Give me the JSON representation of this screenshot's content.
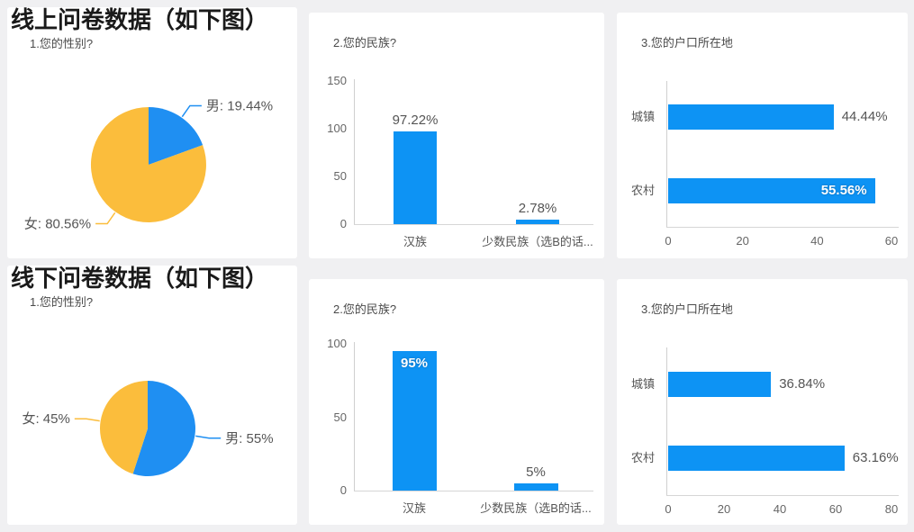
{
  "page": {
    "background": "#f0f0f2",
    "card_background": "#ffffff"
  },
  "colors": {
    "bar_blue": "#0d93f4",
    "pie_blue": "#1f8ff2",
    "pie_yellow": "#fbbd3c",
    "axis_line": "#cfcfcf",
    "tick_text": "#666666",
    "data_label_text": "#555555",
    "inside_label_text": "#ffffff",
    "chart_title_text": "#4a4a4a",
    "heading_text": "#1a1a1a"
  },
  "sections": [
    {
      "id": "online",
      "heading": "线上问卷数据（如下图）"
    },
    {
      "id": "offline",
      "heading": "线下问卷数据（如下图）"
    }
  ],
  "chart_data": [
    {
      "type": "pie",
      "section": "线上问卷数据",
      "title": "1.您的性别?",
      "slices": [
        {
          "label": "男",
          "value": 19.44,
          "display": "男: 19.44%",
          "color": "#1f8ff2"
        },
        {
          "label": "女",
          "value": 80.56,
          "display": "女: 80.56%",
          "color": "#fbbd3c"
        }
      ],
      "legend": false
    },
    {
      "type": "bar",
      "section": "线上问卷数据",
      "title": "2.您的民族?",
      "categories": [
        "汉族",
        "少数民族（选B的话..."
      ],
      "values": [
        97.22,
        2.78
      ],
      "labels": [
        "97.22%",
        "2.78%"
      ],
      "label_positions": [
        "outside",
        "outside"
      ],
      "ylim": [
        0,
        150
      ],
      "yticks": [
        0,
        50,
        100,
        150
      ],
      "xlabel": "",
      "ylabel": "",
      "grid": false,
      "legend": false
    },
    {
      "type": "hbar",
      "section": "线上问卷数据",
      "title": "3.您的户口所在地",
      "categories": [
        "城镇",
        "农村"
      ],
      "values": [
        44.44,
        55.56
      ],
      "labels": [
        "44.44%",
        "55.56%"
      ],
      "label_positions": [
        "outside",
        "inside"
      ],
      "xlim": [
        0,
        60
      ],
      "xticks": [
        0,
        20,
        40,
        60
      ],
      "xlabel": "",
      "ylabel": "",
      "grid": false,
      "legend": false
    },
    {
      "type": "pie",
      "section": "线下问卷数据",
      "title": "1.您的性别?",
      "slices": [
        {
          "label": "男",
          "value": 55,
          "display": "男: 55%",
          "color": "#1f8ff2"
        },
        {
          "label": "女",
          "value": 45,
          "display": "女: 45%",
          "color": "#fbbd3c"
        }
      ],
      "legend": false
    },
    {
      "type": "bar",
      "section": "线下问卷数据",
      "title": "2.您的民族?",
      "categories": [
        "汉族",
        "少数民族（选B的话..."
      ],
      "values": [
        95,
        5
      ],
      "labels": [
        "95%",
        "5%"
      ],
      "label_positions": [
        "inside",
        "outside"
      ],
      "ylim": [
        0,
        100
      ],
      "yticks": [
        0,
        50,
        100
      ],
      "xlabel": "",
      "ylabel": "",
      "grid": false,
      "legend": false
    },
    {
      "type": "hbar",
      "section": "线下问卷数据",
      "title": "3.您的户口所在地",
      "categories": [
        "城镇",
        "农村"
      ],
      "values": [
        36.84,
        63.16
      ],
      "labels": [
        "36.84%",
        "63.16%"
      ],
      "label_positions": [
        "outside",
        "outside"
      ],
      "xlim": [
        0,
        80
      ],
      "xticks": [
        0,
        20,
        40,
        60,
        80
      ],
      "xlabel": "",
      "ylabel": "",
      "grid": false,
      "legend": false
    }
  ]
}
